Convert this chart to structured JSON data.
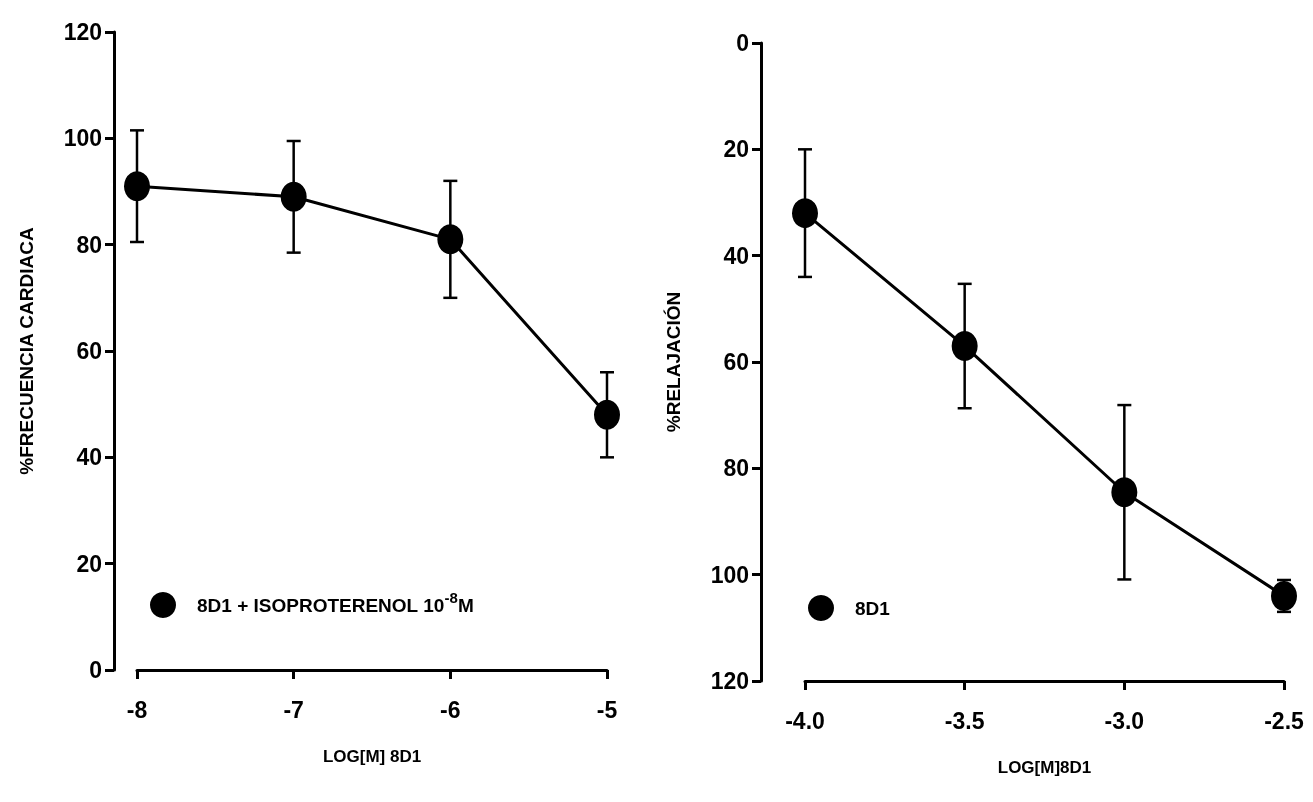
{
  "chart_data": [
    {
      "type": "line",
      "xlabel": "LOG[M] 8D1",
      "ylabel": "%FRECUENCIA CARDIACA",
      "x": [
        -8,
        -7,
        -6,
        -5
      ],
      "series": [
        {
          "name": "8D1 + ISOPROTERENOL 10$^{-8}$M",
          "color": "#000000",
          "values": [
            91,
            89,
            81,
            48
          ],
          "errors": [
            10.5,
            10.5,
            11,
            8
          ]
        }
      ],
      "xlim": [
        -8,
        -5
      ],
      "xticks": [
        -8,
        -7,
        -6,
        -5
      ],
      "ylim": [
        0,
        120
      ],
      "yticks": [
        0,
        20,
        40,
        60,
        80,
        100,
        120
      ],
      "legend": "bottom left",
      "marker": "circle"
    },
    {
      "type": "line",
      "xlabel": "LOG[M]8D1",
      "ylabel": "%RELAJACIÓN",
      "x": [
        -4,
        -3.5,
        -3,
        -2.5
      ],
      "series": [
        {
          "name": "8D1",
          "color": "#000000",
          "values": [
            32,
            57,
            84.5,
            104
          ],
          "errors": [
            12,
            11.7,
            16.4,
            3
          ]
        }
      ],
      "xlim": [
        -4,
        -2.5
      ],
      "xticks": [
        {
          "value": -4,
          "label": "-4.0"
        },
        {
          "value": -3.5,
          "label": "-3.5"
        },
        {
          "value": -3,
          "label": "-3.0"
        },
        {
          "value": -2.5,
          "label": "-2.5"
        }
      ],
      "ylim": [
        120,
        0
      ],
      "yticks": [
        0,
        20,
        40,
        60,
        80,
        100,
        120
      ],
      "legend": "bottom left",
      "marker": "circle"
    }
  ]
}
